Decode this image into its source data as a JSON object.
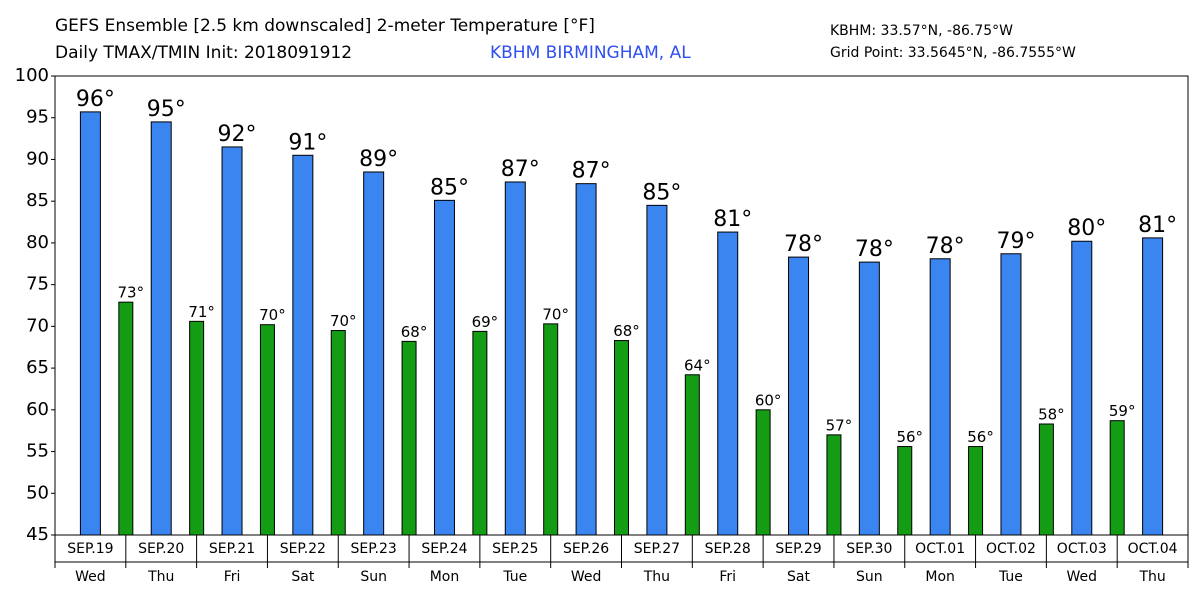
{
  "chart_data": {
    "type": "bar",
    "title": "GEFS Ensemble [2.5 km downscaled] 2-meter Temperature [°F]",
    "subtitle": "Daily TMAX/TMIN Init: 2018091912",
    "location": "KBHM BIRMINGHAM, AL",
    "station_coords": "KBHM: 33.57°N, -86.75°W",
    "grid_point": "Grid Point: 33.5645°N, -86.7555°W",
    "categories": [
      "SEP.19",
      "SEP.20",
      "SEP.21",
      "SEP.22",
      "SEP.23",
      "SEP.24",
      "SEP.25",
      "SEP.26",
      "SEP.27",
      "SEP.28",
      "SEP.29",
      "SEP.30",
      "OCT.01",
      "OCT.02",
      "OCT.03",
      "OCT.04"
    ],
    "weekdays": [
      "Wed",
      "Thu",
      "Fri",
      "Sat",
      "Sun",
      "Mon",
      "Tue",
      "Wed",
      "Thu",
      "Fri",
      "Sat",
      "Sun",
      "Mon",
      "Tue",
      "Wed",
      "Thu"
    ],
    "series": [
      {
        "color": "#3a85f0",
        "values": [
          95.7,
          94.5,
          91.5,
          90.5,
          88.5,
          85.1,
          87.3,
          87.1,
          84.5,
          81.3,
          78.3,
          77.7,
          78.1,
          78.7,
          80.2,
          80.6
        ],
        "value_labels": [
          "96°",
          "95°",
          "92°",
          "91°",
          "89°",
          "85°",
          "87°",
          "87°",
          "85°",
          "81°",
          "78°",
          "78°",
          "78°",
          "79°",
          "80°",
          "81°"
        ]
      },
      {
        "color": "#149c14",
        "values": [
          72.9,
          70.6,
          70.2,
          69.5,
          68.2,
          69.4,
          70.3,
          68.3,
          64.2,
          60.0,
          57.0,
          55.6,
          55.6,
          58.3,
          58.7,
          null
        ],
        "value_labels": [
          "73°",
          "71°",
          "70°",
          "70°",
          "68°",
          "69°",
          "70°",
          "68°",
          "64°",
          "60°",
          "57°",
          "56°",
          "56°",
          "58°",
          "59°",
          null
        ]
      }
    ],
    "ylim": [
      45,
      100
    ],
    "yticks": [
      45,
      50,
      55,
      60,
      65,
      70,
      75,
      80,
      85,
      90,
      95,
      100
    ],
    "grid": false
  }
}
